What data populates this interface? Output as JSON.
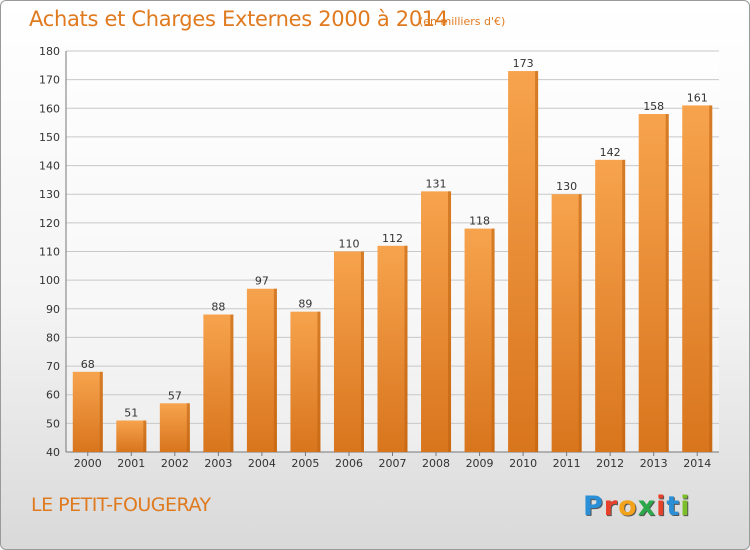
{
  "header": {
    "title": "Achats et Charges Externes 2000 à 2014",
    "unit": "(en milliers d'€)"
  },
  "footer": {
    "place": "LE PETIT-FOUGERAY",
    "brand": "Proxiti",
    "brand_colors": [
      "#2a8fd6",
      "#e8412b",
      "#f2a31b",
      "#2ba84a",
      "#e8412b",
      "#2a8fd6",
      "#7cbf2a"
    ]
  },
  "colors": {
    "bar_light": "#f7a34d",
    "bar_dark": "#d8751d",
    "bar_right_edge": "#c0620f",
    "accent_text": "#e07a1f",
    "grid": "#c8c8c8"
  },
  "chart_data": {
    "type": "bar",
    "categories": [
      "2000",
      "2001",
      "2002",
      "2003",
      "2004",
      "2005",
      "2006",
      "2007",
      "2008",
      "2009",
      "2010",
      "2011",
      "2012",
      "2013",
      "2014"
    ],
    "values": [
      68,
      51,
      57,
      88,
      97,
      89,
      110,
      112,
      131,
      118,
      173,
      130,
      142,
      158,
      161
    ],
    "ylim": [
      40,
      180
    ],
    "yticks": [
      40,
      50,
      60,
      70,
      80,
      90,
      100,
      110,
      120,
      130,
      140,
      150,
      160,
      170,
      180
    ],
    "grid": true,
    "data_labels": true
  }
}
